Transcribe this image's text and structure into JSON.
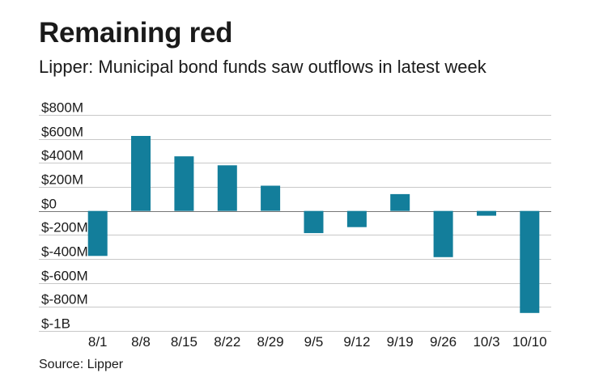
{
  "title": "Remaining red",
  "subtitle": "Lipper: Municipal bond funds saw outflows in latest week",
  "source": "Source: Lipper",
  "colors": {
    "bar": "#137e9b",
    "grid": "#c8c8c8",
    "zero_line": "#777777",
    "text": "#1a1a1a"
  },
  "chart_data": {
    "type": "bar",
    "title": "Remaining red",
    "subtitle": "Lipper: Municipal bond funds saw outflows in latest week",
    "xlabel": "",
    "ylabel": "",
    "unit": "USD",
    "grid": true,
    "categories": [
      "8/1",
      "8/8",
      "8/15",
      "8/22",
      "8/29",
      "9/5",
      "9/12",
      "9/19",
      "9/26",
      "10/3",
      "10/10"
    ],
    "values": [
      -375,
      625,
      455,
      380,
      210,
      -185,
      -135,
      140,
      -385,
      -40,
      -850
    ],
    "ylim": [
      -1000,
      800
    ],
    "yticks": [
      800,
      600,
      400,
      200,
      0,
      -200,
      -400,
      -600,
      -800,
      -1000
    ],
    "ytick_labels": [
      "$800M",
      "$600M",
      "$400M",
      "$200M",
      "$0",
      "$-200M",
      "$-400M",
      "$-600M",
      "$-800M",
      "$-1B"
    ],
    "source": "Source: Lipper"
  }
}
